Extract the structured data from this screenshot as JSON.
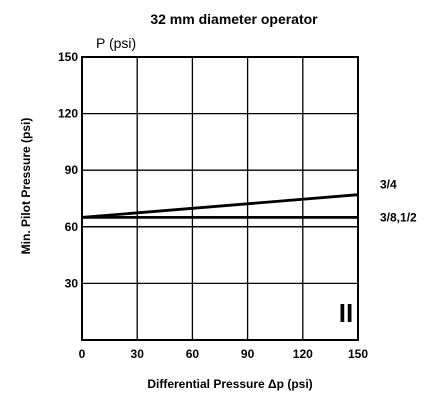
{
  "chart_data": {
    "type": "line",
    "title": "32 mm diameter operator",
    "xlabel": "Differential Pressure  Δp (psi)",
    "ylabel": "Min. Pilot Pressure (psi)",
    "y_unit_label": "P (psi)",
    "xlim": [
      0,
      150
    ],
    "ylim": [
      0,
      150
    ],
    "x_ticks": [
      "0",
      "30",
      "60",
      "90",
      "120",
      "150"
    ],
    "y_ticks": [
      "150",
      "120",
      "90",
      "60",
      "30"
    ],
    "grid": true,
    "region_label": "II",
    "series": [
      {
        "name": "3/4",
        "x": [
          0,
          150
        ],
        "y": [
          65,
          77
        ]
      },
      {
        "name": "3/8,1/2",
        "x": [
          0,
          150
        ],
        "y": [
          65,
          65
        ]
      }
    ],
    "reference_lines": [
      {
        "y": 60
      }
    ]
  }
}
